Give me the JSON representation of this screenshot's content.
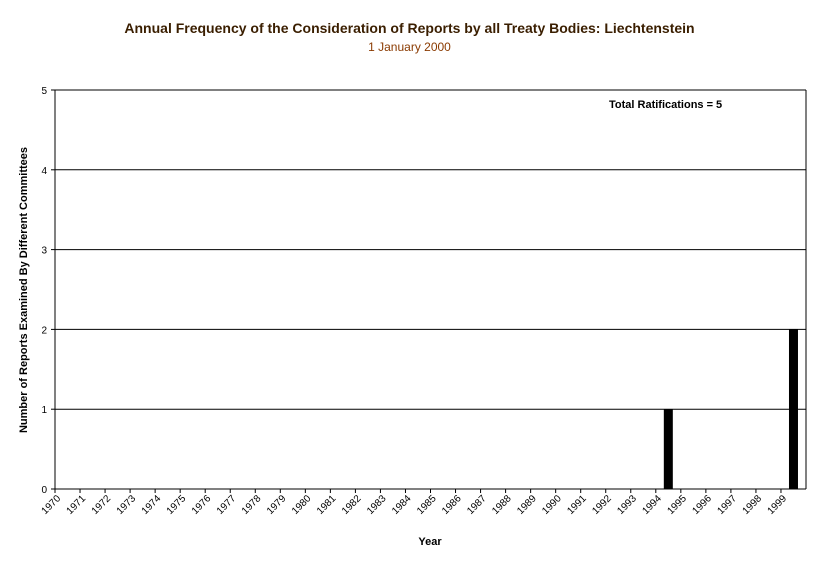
{
  "chart_data": {
    "type": "bar",
    "title": "Annual Frequency of the Consideration of Reports by all Treaty Bodies: Liechtenstein",
    "subtitle": "1 January 2000",
    "xlabel": "Year",
    "ylabel": "Number of Reports Examined By Different Committees",
    "annotation": "Total Ratifications = 5",
    "categories": [
      "1970",
      "1971",
      "1972",
      "1973",
      "1974",
      "1975",
      "1976",
      "1977",
      "1978",
      "1979",
      "1980",
      "1981",
      "1982",
      "1983",
      "1984",
      "1985",
      "1986",
      "1987",
      "1988",
      "1989",
      "1990",
      "1991",
      "1992",
      "1993",
      "1994",
      "1995",
      "1996",
      "1997",
      "1998",
      "1999"
    ],
    "values": [
      0,
      0,
      0,
      0,
      0,
      0,
      0,
      0,
      0,
      0,
      0,
      0,
      0,
      0,
      0,
      0,
      0,
      0,
      0,
      0,
      0,
      0,
      0,
      0,
      1,
      0,
      0,
      0,
      0,
      2
    ],
    "ylim": [
      0,
      5
    ],
    "yticks": [
      0,
      1,
      2,
      3,
      4,
      5
    ],
    "grid": true,
    "bar_color": "#000000",
    "grid_color": "#000000",
    "title_color": "#3a1e00",
    "subtitle_color": "#8a3a00"
  }
}
